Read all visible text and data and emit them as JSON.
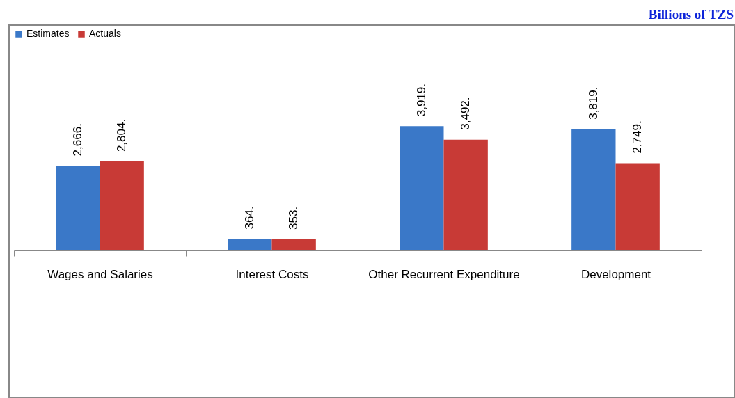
{
  "chart_data": {
    "type": "bar",
    "annotations": [
      "Billions of TZS"
    ],
    "categories": [
      "Wages and Salaries",
      "Interest Costs",
      "Other Recurrent Expenditure",
      "Development"
    ],
    "series": [
      {
        "name": "Estimates",
        "color": "#3a78c8",
        "values": [
          2666,
          364,
          3919,
          3819
        ],
        "value_labels": [
          "2,666.",
          "364.",
          "3,919.",
          "3,819."
        ]
      },
      {
        "name": "Actuals",
        "color": "#c83a36",
        "values": [
          2804,
          353,
          3492,
          2749
        ],
        "value_labels": [
          "2,804.",
          "353.",
          "3,492.",
          "2,749."
        ]
      }
    ],
    "legend": "top"
  }
}
